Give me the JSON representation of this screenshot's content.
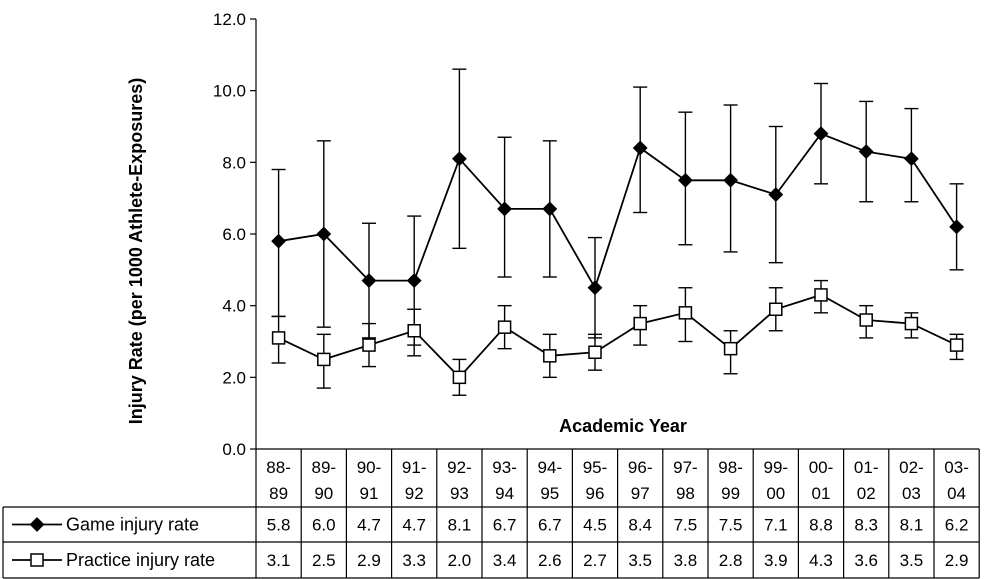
{
  "chart_data": {
    "type": "line",
    "ylabel": "Injury Rate (per 1000 Athlete-Exposures)",
    "xlabel": "Academic Year",
    "ylim": [
      0,
      12
    ],
    "yticks": [
      "0.0",
      "2.0",
      "4.0",
      "6.0",
      "8.0",
      "10.0",
      "12.0"
    ],
    "grid": false,
    "legend_placement": "bottom table",
    "categories": [
      [
        "88-",
        "89"
      ],
      [
        "89-",
        "90"
      ],
      [
        "90-",
        "91"
      ],
      [
        "91-",
        "92"
      ],
      [
        "92-",
        "93"
      ],
      [
        "93-",
        "94"
      ],
      [
        "94-",
        "95"
      ],
      [
        "95-",
        "96"
      ],
      [
        "96-",
        "97"
      ],
      [
        "97-",
        "98"
      ],
      [
        "98-",
        "99"
      ],
      [
        "99-",
        "00"
      ],
      [
        "00-",
        "01"
      ],
      [
        "01-",
        "02"
      ],
      [
        "02-",
        "03"
      ],
      [
        "03-",
        "04"
      ]
    ],
    "series": [
      {
        "name": "Game injury rate",
        "marker": "filled-diamond",
        "color": "#000000",
        "values": [
          5.8,
          6.0,
          4.7,
          4.7,
          8.1,
          6.7,
          6.7,
          4.5,
          8.4,
          7.5,
          7.5,
          7.1,
          8.8,
          8.3,
          8.1,
          6.2
        ],
        "labels": [
          "5.8",
          "6.0",
          "4.7",
          "4.7",
          "8.1",
          "6.7",
          "6.7",
          "4.5",
          "8.4",
          "7.5",
          "7.5",
          "7.1",
          "8.8",
          "8.3",
          "8.1",
          "6.2"
        ],
        "error_low": [
          3.7,
          3.4,
          3.1,
          2.9,
          5.6,
          4.8,
          4.8,
          3.1,
          6.6,
          5.7,
          5.5,
          5.2,
          7.4,
          6.9,
          6.9,
          5.0
        ],
        "error_high": [
          7.8,
          8.6,
          6.3,
          6.5,
          10.6,
          8.7,
          8.6,
          5.9,
          10.1,
          9.4,
          9.6,
          9.0,
          10.2,
          9.7,
          9.5,
          7.4
        ]
      },
      {
        "name": "Practice injury rate",
        "marker": "open-square",
        "color": "#000000",
        "values": [
          3.1,
          2.5,
          2.9,
          3.3,
          2.0,
          3.4,
          2.6,
          2.7,
          3.5,
          3.8,
          2.8,
          3.9,
          4.3,
          3.6,
          3.5,
          2.9
        ],
        "labels": [
          "3.1",
          "2.5",
          "2.9",
          "3.3",
          "2.0",
          "3.4",
          "2.6",
          "2.7",
          "3.5",
          "3.8",
          "2.8",
          "3.9",
          "4.3",
          "3.6",
          "3.5",
          "2.9"
        ],
        "error_low": [
          2.4,
          1.7,
          2.3,
          2.6,
          1.5,
          2.8,
          2.0,
          2.2,
          2.9,
          3.0,
          2.1,
          3.3,
          3.8,
          3.1,
          3.1,
          2.5
        ],
        "error_high": [
          3.7,
          3.2,
          3.5,
          3.9,
          2.5,
          4.0,
          3.2,
          3.2,
          4.0,
          4.5,
          3.3,
          4.5,
          4.7,
          4.0,
          3.8,
          3.2
        ]
      }
    ]
  }
}
